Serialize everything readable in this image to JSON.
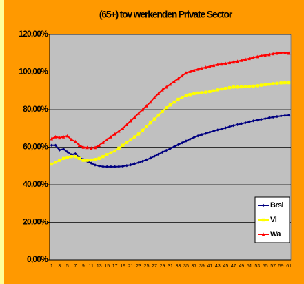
{
  "chart_data": {
    "type": "line",
    "title": "(65+) tov werkenden Private Sector",
    "categories": [
      "1",
      null,
      "3",
      null,
      "5",
      null,
      "7",
      null,
      "9",
      null,
      "11",
      null,
      "13",
      null,
      "15",
      null,
      "17",
      null,
      "19",
      null,
      "21",
      null,
      "23",
      null,
      "25",
      null,
      "27",
      null,
      "29",
      null,
      "31",
      null,
      "33",
      null,
      "35",
      null,
      "37",
      null,
      "39",
      null,
      "41",
      null,
      "43",
      null,
      "45",
      null,
      "47",
      null,
      "49",
      null,
      "51",
      null,
      "53",
      null,
      "55",
      null,
      "57",
      null,
      "59",
      null,
      "61"
    ],
    "series": [
      {
        "name": "Brsl",
        "color": "#000080",
        "marker": "diamond",
        "values": [
          61,
          61,
          58.5,
          59,
          57.5,
          56,
          56.5,
          54.5,
          53.5,
          52.5,
          51.5,
          50.5,
          50,
          49.7,
          49.6,
          49.6,
          49.6,
          49.7,
          49.8,
          50.2,
          50.6,
          51.2,
          51.8,
          52.5,
          53.3,
          54.2,
          55.2,
          56.2,
          57.3,
          58.3,
          59.3,
          60.3,
          61.3,
          62.3,
          63.3,
          64.3,
          65.2,
          66,
          66.7,
          67.3,
          68,
          68.6,
          69.2,
          69.7,
          70.3,
          70.9,
          71.5,
          72,
          72.5,
          73,
          73.5,
          74,
          74.4,
          74.8,
          75.2,
          75.6,
          76,
          76.3,
          76.6,
          76.8,
          77
        ]
      },
      {
        "name": "Vl",
        "color": "#FFFF00",
        "marker": "square",
        "values": [
          51,
          52,
          53,
          54,
          54.5,
          55,
          55,
          54,
          53,
          53,
          53.2,
          53.5,
          54,
          55,
          56,
          57,
          58,
          59.5,
          61,
          62.5,
          64,
          65.5,
          67,
          69,
          71,
          73,
          75,
          77,
          79,
          81,
          82.5,
          84,
          85.5,
          86.5,
          87.5,
          88,
          88.5,
          88.8,
          89,
          89.3,
          89.6,
          90,
          90.5,
          91,
          91.3,
          91.7,
          92,
          92,
          92.1,
          92.2,
          92.3,
          92.5,
          92.7,
          93,
          93.3,
          93.5,
          93.8,
          94,
          94.2,
          94.3,
          94.3
        ]
      },
      {
        "name": "Wa",
        "color": "#FF0000",
        "marker": "triangle",
        "values": [
          64.5,
          65.5,
          65,
          65.5,
          66,
          64,
          63,
          61,
          60,
          59.8,
          59.5,
          59.8,
          61,
          62.5,
          64,
          65.5,
          67,
          68.5,
          70,
          72,
          74,
          76,
          78,
          80,
          82,
          84,
          86.5,
          88.5,
          90.5,
          92,
          93.5,
          95,
          96.5,
          98,
          99.5,
          100.3,
          101,
          101.5,
          102,
          102.5,
          103,
          103.5,
          104,
          104.2,
          104.5,
          105,
          105.3,
          105.7,
          106.2,
          106.8,
          107.2,
          107.7,
          108.2,
          108.7,
          109,
          109.3,
          109.7,
          110,
          110.2,
          110.3,
          110
        ]
      }
    ],
    "ylim": [
      0,
      120
    ],
    "yticks": [
      {
        "value": 0,
        "label": "0,00%"
      },
      {
        "value": 20,
        "label": "20,00%"
      },
      {
        "value": 40,
        "label": "40,00%"
      },
      {
        "value": 60,
        "label": "60,00%"
      },
      {
        "value": 80,
        "label": "80,00%"
      },
      {
        "value": 100,
        "label": "100,00%"
      },
      {
        "value": 120,
        "label": "120,00%"
      }
    ],
    "grid": true,
    "legend": "lower right",
    "plot_color": "#C0C0C0",
    "background": "#FF9900"
  }
}
